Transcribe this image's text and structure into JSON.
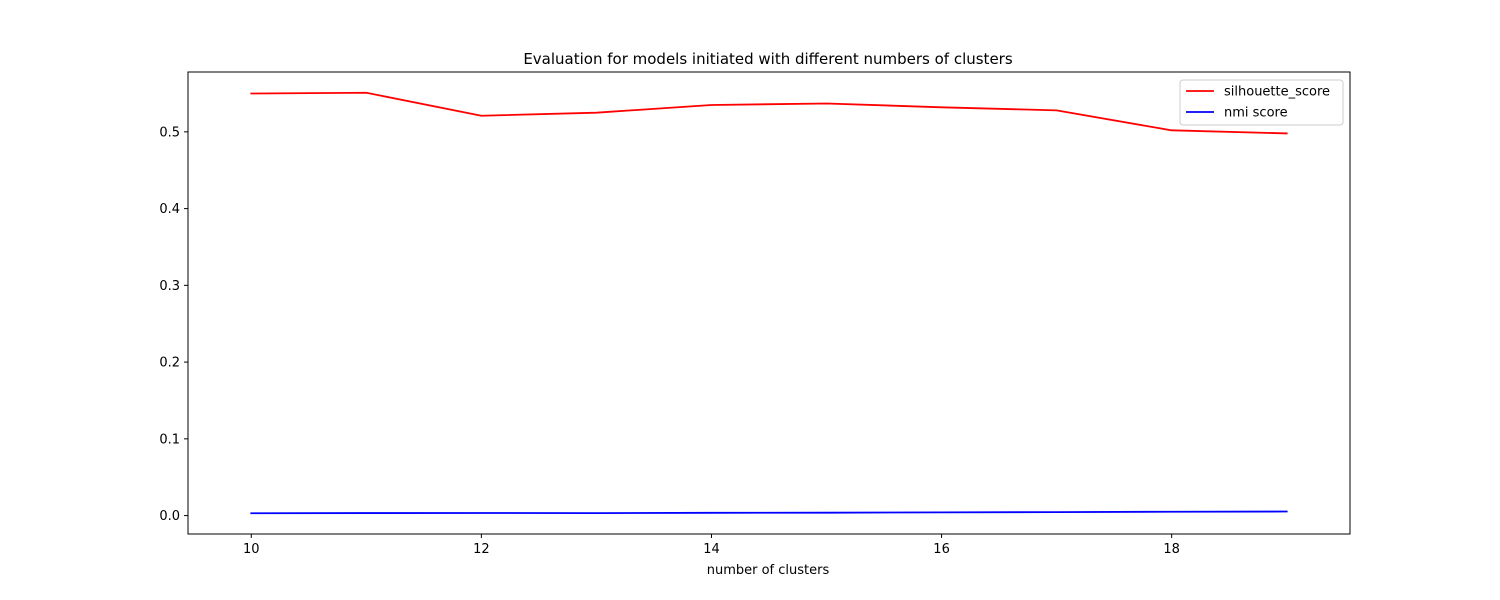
{
  "chart_data": {
    "type": "line",
    "title": "Evaluation for models initiated with different numbers of clusters",
    "xlabel": "number of clusters",
    "ylabel": "",
    "x": [
      10,
      11,
      12,
      13,
      14,
      15,
      16,
      17,
      18,
      19
    ],
    "series": [
      {
        "name": "silhouette_score",
        "color": "#ff0000",
        "values": [
          0.55,
          0.551,
          0.521,
          0.525,
          0.535,
          0.537,
          0.532,
          0.528,
          0.502,
          0.498
        ]
      },
      {
        "name": "nmi score",
        "color": "#0000ff",
        "values": [
          0.003,
          0.0033,
          0.0034,
          0.0032,
          0.0036,
          0.0038,
          0.0042,
          0.0045,
          0.005,
          0.0053
        ]
      }
    ],
    "xlim": [
      9.45,
      19.55
    ],
    "ylim": [
      -0.024,
      0.578
    ],
    "xticks": [
      10,
      12,
      14,
      16,
      18
    ],
    "yticks": [
      0.0,
      0.1,
      0.2,
      0.3,
      0.4,
      0.5
    ],
    "xtick_labels": [
      "10",
      "12",
      "14",
      "16",
      "18"
    ],
    "ytick_labels": [
      "0.0",
      "0.1",
      "0.2",
      "0.3",
      "0.4",
      "0.5"
    ],
    "grid": false,
    "legend_position": "top-right"
  }
}
